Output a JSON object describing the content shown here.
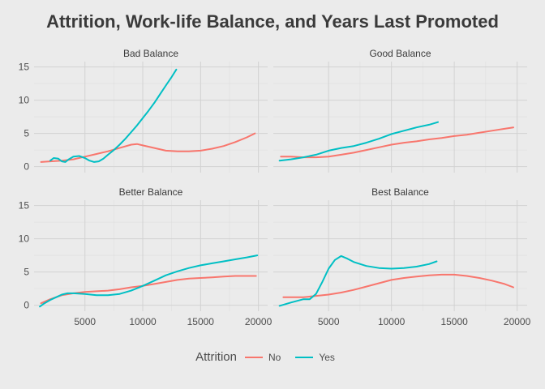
{
  "chart_data": {
    "type": "line",
    "title": "Attrition, Work-life Balance, and Years Last Promoted",
    "xlim": [
      600,
      20800
    ],
    "ylim": [
      -0.9,
      15.8
    ],
    "x_ticks": [
      5000,
      10000,
      15000,
      20000
    ],
    "x_tick_labels": [
      "5000",
      "10000",
      "15000",
      "20000"
    ],
    "y_ticks": [
      0,
      5,
      10,
      15
    ],
    "y_tick_labels": [
      "0",
      "5",
      "10",
      "15"
    ],
    "grid": true,
    "legend": {
      "title": "Attrition",
      "placement": "bottom",
      "entries": [
        {
          "label": "No",
          "color": "#f8766d"
        },
        {
          "label": "Yes",
          "color": "#00bfc4"
        }
      ]
    },
    "panels": [
      {
        "label": "Bad Balance",
        "series": [
          {
            "name": "No",
            "color": "#f8766d",
            "x": [
              1200,
              2000,
              3000,
              4000,
              5000,
              6000,
              7000,
              8000,
              9000,
              9500,
              10000,
              11000,
              12000,
              13000,
              14000,
              15000,
              16000,
              17000,
              18000,
              19000,
              19700
            ],
            "y": [
              0.7,
              0.8,
              0.9,
              1.1,
              1.5,
              1.9,
              2.3,
              2.8,
              3.3,
              3.4,
              3.2,
              2.8,
              2.4,
              2.3,
              2.3,
              2.4,
              2.7,
              3.1,
              3.7,
              4.4,
              5.0
            ]
          },
          {
            "name": "Yes",
            "color": "#00bfc4",
            "x": [
              2000,
              2300,
              2700,
              3000,
              3300,
              3600,
              4000,
              4500,
              5000,
              5400,
              5800,
              6200,
              6600,
              7000,
              7500,
              8000,
              8500,
              9000,
              9500,
              10000,
              10500,
              11000,
              11500,
              12000,
              12500,
              12900
            ],
            "y": [
              0.9,
              1.3,
              1.2,
              0.8,
              0.7,
              1.1,
              1.5,
              1.6,
              1.3,
              0.9,
              0.7,
              0.8,
              1.2,
              1.8,
              2.5,
              3.3,
              4.2,
              5.2,
              6.2,
              7.3,
              8.4,
              9.6,
              10.9,
              12.2,
              13.5,
              14.6
            ]
          }
        ]
      },
      {
        "label": "Good Balance",
        "series": [
          {
            "name": "No",
            "color": "#f8766d",
            "x": [
              1200,
              2000,
              3000,
              4000,
              5000,
              6000,
              7000,
              8000,
              9000,
              10000,
              11000,
              12000,
              13000,
              14000,
              15000,
              16000,
              17000,
              18000,
              19000,
              19700
            ],
            "y": [
              1.5,
              1.5,
              1.4,
              1.4,
              1.5,
              1.8,
              2.1,
              2.5,
              2.9,
              3.3,
              3.6,
              3.8,
              4.1,
              4.3,
              4.6,
              4.8,
              5.1,
              5.4,
              5.7,
              5.9
            ]
          },
          {
            "name": "Yes",
            "color": "#00bfc4",
            "x": [
              1100,
              2000,
              3000,
              4000,
              5000,
              6000,
              7000,
              8000,
              9000,
              10000,
              11000,
              12000,
              13000,
              13700
            ],
            "y": [
              0.9,
              1.1,
              1.4,
              1.8,
              2.4,
              2.8,
              3.1,
              3.6,
              4.2,
              4.9,
              5.4,
              5.9,
              6.3,
              6.7
            ]
          }
        ]
      },
      {
        "label": "Better Balance",
        "series": [
          {
            "name": "No",
            "color": "#f8766d",
            "x": [
              1200,
              2000,
              3000,
              4000,
              5000,
              6000,
              7000,
              8000,
              9000,
              10000,
              11000,
              12000,
              13000,
              14000,
              15000,
              16000,
              17000,
              18000,
              19000,
              19800
            ],
            "y": [
              0.3,
              0.9,
              1.5,
              1.8,
              2.0,
              2.1,
              2.2,
              2.4,
              2.7,
              2.9,
              3.2,
              3.5,
              3.8,
              4.0,
              4.1,
              4.2,
              4.3,
              4.4,
              4.4,
              4.4
            ]
          },
          {
            "name": "Yes",
            "color": "#00bfc4",
            "x": [
              1100,
              1500,
              2000,
              2500,
              3000,
              3500,
              4000,
              5000,
              6000,
              7000,
              8000,
              9000,
              10000,
              11000,
              12000,
              13000,
              14000,
              15000,
              16000,
              17000,
              18000,
              19000,
              19900
            ],
            "y": [
              -0.2,
              0.3,
              0.8,
              1.2,
              1.6,
              1.8,
              1.8,
              1.7,
              1.5,
              1.5,
              1.7,
              2.2,
              2.9,
              3.7,
              4.5,
              5.1,
              5.6,
              6.0,
              6.3,
              6.6,
              6.9,
              7.2,
              7.5
            ]
          }
        ]
      },
      {
        "label": "Best Balance",
        "series": [
          {
            "name": "No",
            "color": "#f8766d",
            "x": [
              1400,
              2000,
              3000,
              4000,
              5000,
              6000,
              7000,
              8000,
              9000,
              10000,
              11000,
              12000,
              13000,
              14000,
              15000,
              16000,
              17000,
              18000,
              19000,
              19700
            ],
            "y": [
              1.2,
              1.2,
              1.2,
              1.4,
              1.6,
              1.9,
              2.3,
              2.8,
              3.3,
              3.8,
              4.1,
              4.3,
              4.5,
              4.6,
              4.6,
              4.4,
              4.1,
              3.7,
              3.2,
              2.7
            ]
          },
          {
            "name": "Yes",
            "color": "#00bfc4",
            "x": [
              1100,
              2000,
              3000,
              3500,
              4000,
              4500,
              5000,
              5500,
              6000,
              6500,
              7000,
              8000,
              9000,
              10000,
              11000,
              12000,
              13000,
              13600
            ],
            "y": [
              -0.1,
              0.4,
              0.9,
              0.9,
              1.7,
              3.5,
              5.5,
              6.8,
              7.4,
              7.0,
              6.5,
              5.9,
              5.6,
              5.5,
              5.6,
              5.8,
              6.2,
              6.6
            ]
          }
        ]
      }
    ]
  }
}
